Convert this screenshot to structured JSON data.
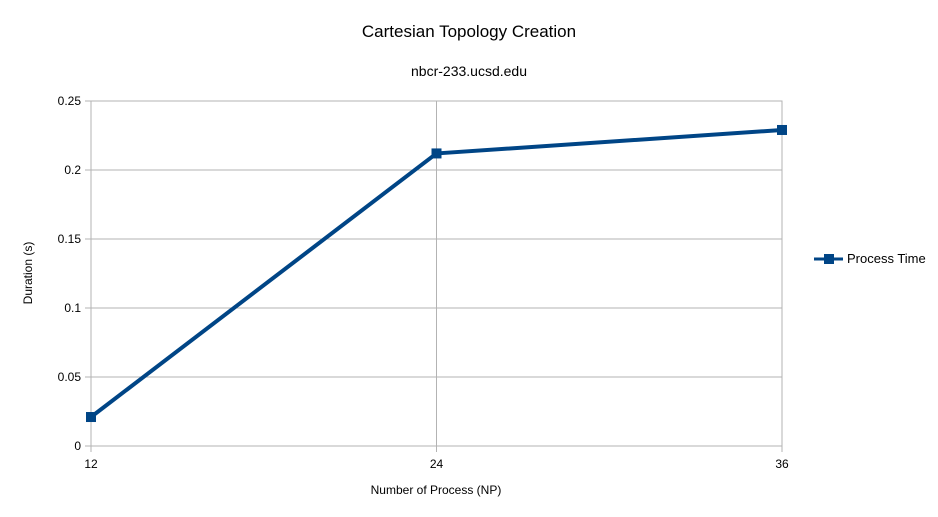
{
  "chart_data": {
    "type": "line",
    "title": "Cartesian Topology Creation",
    "subtitle": "nbcr-233.ucsd.edu",
    "xlabel": "Number of Process (NP)",
    "ylabel": "Duration (s)",
    "categories": [
      "12",
      "24",
      "36"
    ],
    "ylim": [
      0,
      0.25
    ],
    "yticks": [
      "0",
      "0.05",
      "0.1",
      "0.15",
      "0.2",
      "0.25"
    ],
    "grid": true,
    "legend_position": "right",
    "series": [
      {
        "name": "Process Time",
        "values": [
          0.021,
          0.212,
          0.229
        ],
        "color": "#004586"
      }
    ]
  }
}
